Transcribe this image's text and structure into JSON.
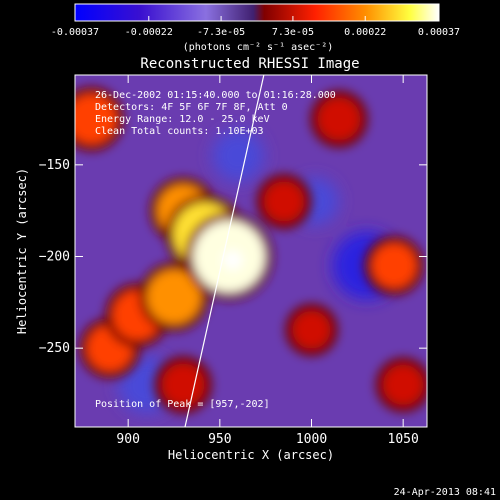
{
  "chart_data": {
    "type": "heatmap",
    "title": "Reconstructed RHESSI Image",
    "xlabel": "Heliocentric X (arcsec)",
    "ylabel": "Heliocentric Y (arcsec)",
    "xlim": [
      871,
      1063
    ],
    "ylim": [
      -293,
      -101
    ],
    "x_ticks": [
      900,
      950,
      1000,
      1050
    ],
    "y_ticks": [
      -150,
      -200,
      -250
    ],
    "colorbar": {
      "range": [
        -0.00037,
        0.00037
      ],
      "tick_values": [
        -0.00037,
        -0.00022,
        -7.3e-05,
        7.3e-05,
        0.00022,
        0.00037
      ],
      "tick_labels": [
        "-0.00037",
        "-0.00022",
        "-7.3e-05",
        "7.3e-05",
        "0.00022",
        "0.00037"
      ],
      "unit_label": "(photons cm⁻² s⁻¹ asec⁻²)",
      "colors": [
        "#0000ff",
        "#3a00c8",
        "#8060d8",
        "#6030a0",
        "#ff2000",
        "#ff9000",
        "#ffff40",
        "#ffffff"
      ]
    },
    "annotations": [
      "26-Dec-2002 01:15:40.000 to 01:16:28.000",
      "Detectors: 4F 5F 6F 7F 8F, Att 0",
      "Energy Range: 12.0 - 25.0 keV",
      "Clean     Total counts: 1.10E+03"
    ],
    "peak_label": "Position of Peak = [957,-202]",
    "peak": [
      957,
      -202
    ],
    "limb_line": [
      [
        931,
        -293
      ],
      [
        974,
        -101
      ]
    ],
    "bright_sources": [
      {
        "x": 955,
        "y": -200,
        "value": 0.00037
      },
      {
        "x": 942,
        "y": -188,
        "value": 0.0003
      },
      {
        "x": 930,
        "y": -175,
        "value": 0.0002
      },
      {
        "x": 925,
        "y": -222,
        "value": 0.00022
      },
      {
        "x": 905,
        "y": -232,
        "value": 0.00018
      },
      {
        "x": 890,
        "y": -250,
        "value": 0.00015
      },
      {
        "x": 880,
        "y": -125,
        "value": 0.00018
      },
      {
        "x": 930,
        "y": -270,
        "value": 0.00012
      },
      {
        "x": 985,
        "y": -170,
        "value": 0.0001
      },
      {
        "x": 1015,
        "y": -125,
        "value": 0.00012
      },
      {
        "x": 1045,
        "y": -205,
        "value": 0.00014
      },
      {
        "x": 1050,
        "y": -270,
        "value": 0.0001
      },
      {
        "x": 1000,
        "y": -240,
        "value": 8e-05
      }
    ],
    "dark_sources": [
      {
        "x": 910,
        "y": -270,
        "value": -0.00018
      },
      {
        "x": 1030,
        "y": -205,
        "value": -0.00025
      },
      {
        "x": 1002,
        "y": -170,
        "value": -0.00012
      },
      {
        "x": 960,
        "y": -145,
        "value": -0.00015
      }
    ]
  },
  "footer": {
    "timestamp": "24-Apr-2013 08:41"
  }
}
